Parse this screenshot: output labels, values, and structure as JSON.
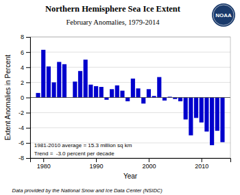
{
  "chart_data": {
    "type": "bar",
    "title": "Northern Hemisphere Sea Ice Extent",
    "subtitle": "February Anomalies, 1979-2014",
    "xlabel": "Year",
    "ylabel": "Extent Anomalies in Percent",
    "annotations": [
      "1981-2010 average = 15.3 million sq km",
      "Trend =  -3.0 percent per decade"
    ],
    "footer": "Data provided by the National Snow and Ice Data Center (NSIDC)",
    "logo": "NOAA",
    "x": [
      1979,
      1980,
      1981,
      1982,
      1983,
      1984,
      1985,
      1986,
      1987,
      1988,
      1989,
      1990,
      1991,
      1992,
      1993,
      1994,
      1995,
      1996,
      1997,
      1998,
      1999,
      2000,
      2001,
      2002,
      2003,
      2004,
      2005,
      2006,
      2007,
      2008,
      2009,
      2010,
      2011,
      2012,
      2013,
      2014
    ],
    "values": [
      0.6,
      6.3,
      4.1,
      2.0,
      4.7,
      4.4,
      0.0,
      2.1,
      3.5,
      5.0,
      1.7,
      1.5,
      1.4,
      -0.3,
      1.1,
      1.6,
      0.9,
      -0.5,
      2.5,
      1.2,
      -0.8,
      1.1,
      0.2,
      2.7,
      -0.4,
      0.1,
      -0.2,
      -0.5,
      -2.9,
      -5.0,
      -2.7,
      -3.3,
      -4.5,
      -6.3,
      -4.4,
      -5.9
    ],
    "color": "#0000CC",
    "xlim": [
      1977.5,
      2015.5
    ],
    "xticks": [
      1980,
      1990,
      2000,
      2010
    ],
    "ylim": [
      -8,
      8
    ],
    "yticks": [
      -8,
      -6,
      -4,
      -2,
      0,
      2,
      4,
      6,
      8
    ],
    "grid": true
  }
}
